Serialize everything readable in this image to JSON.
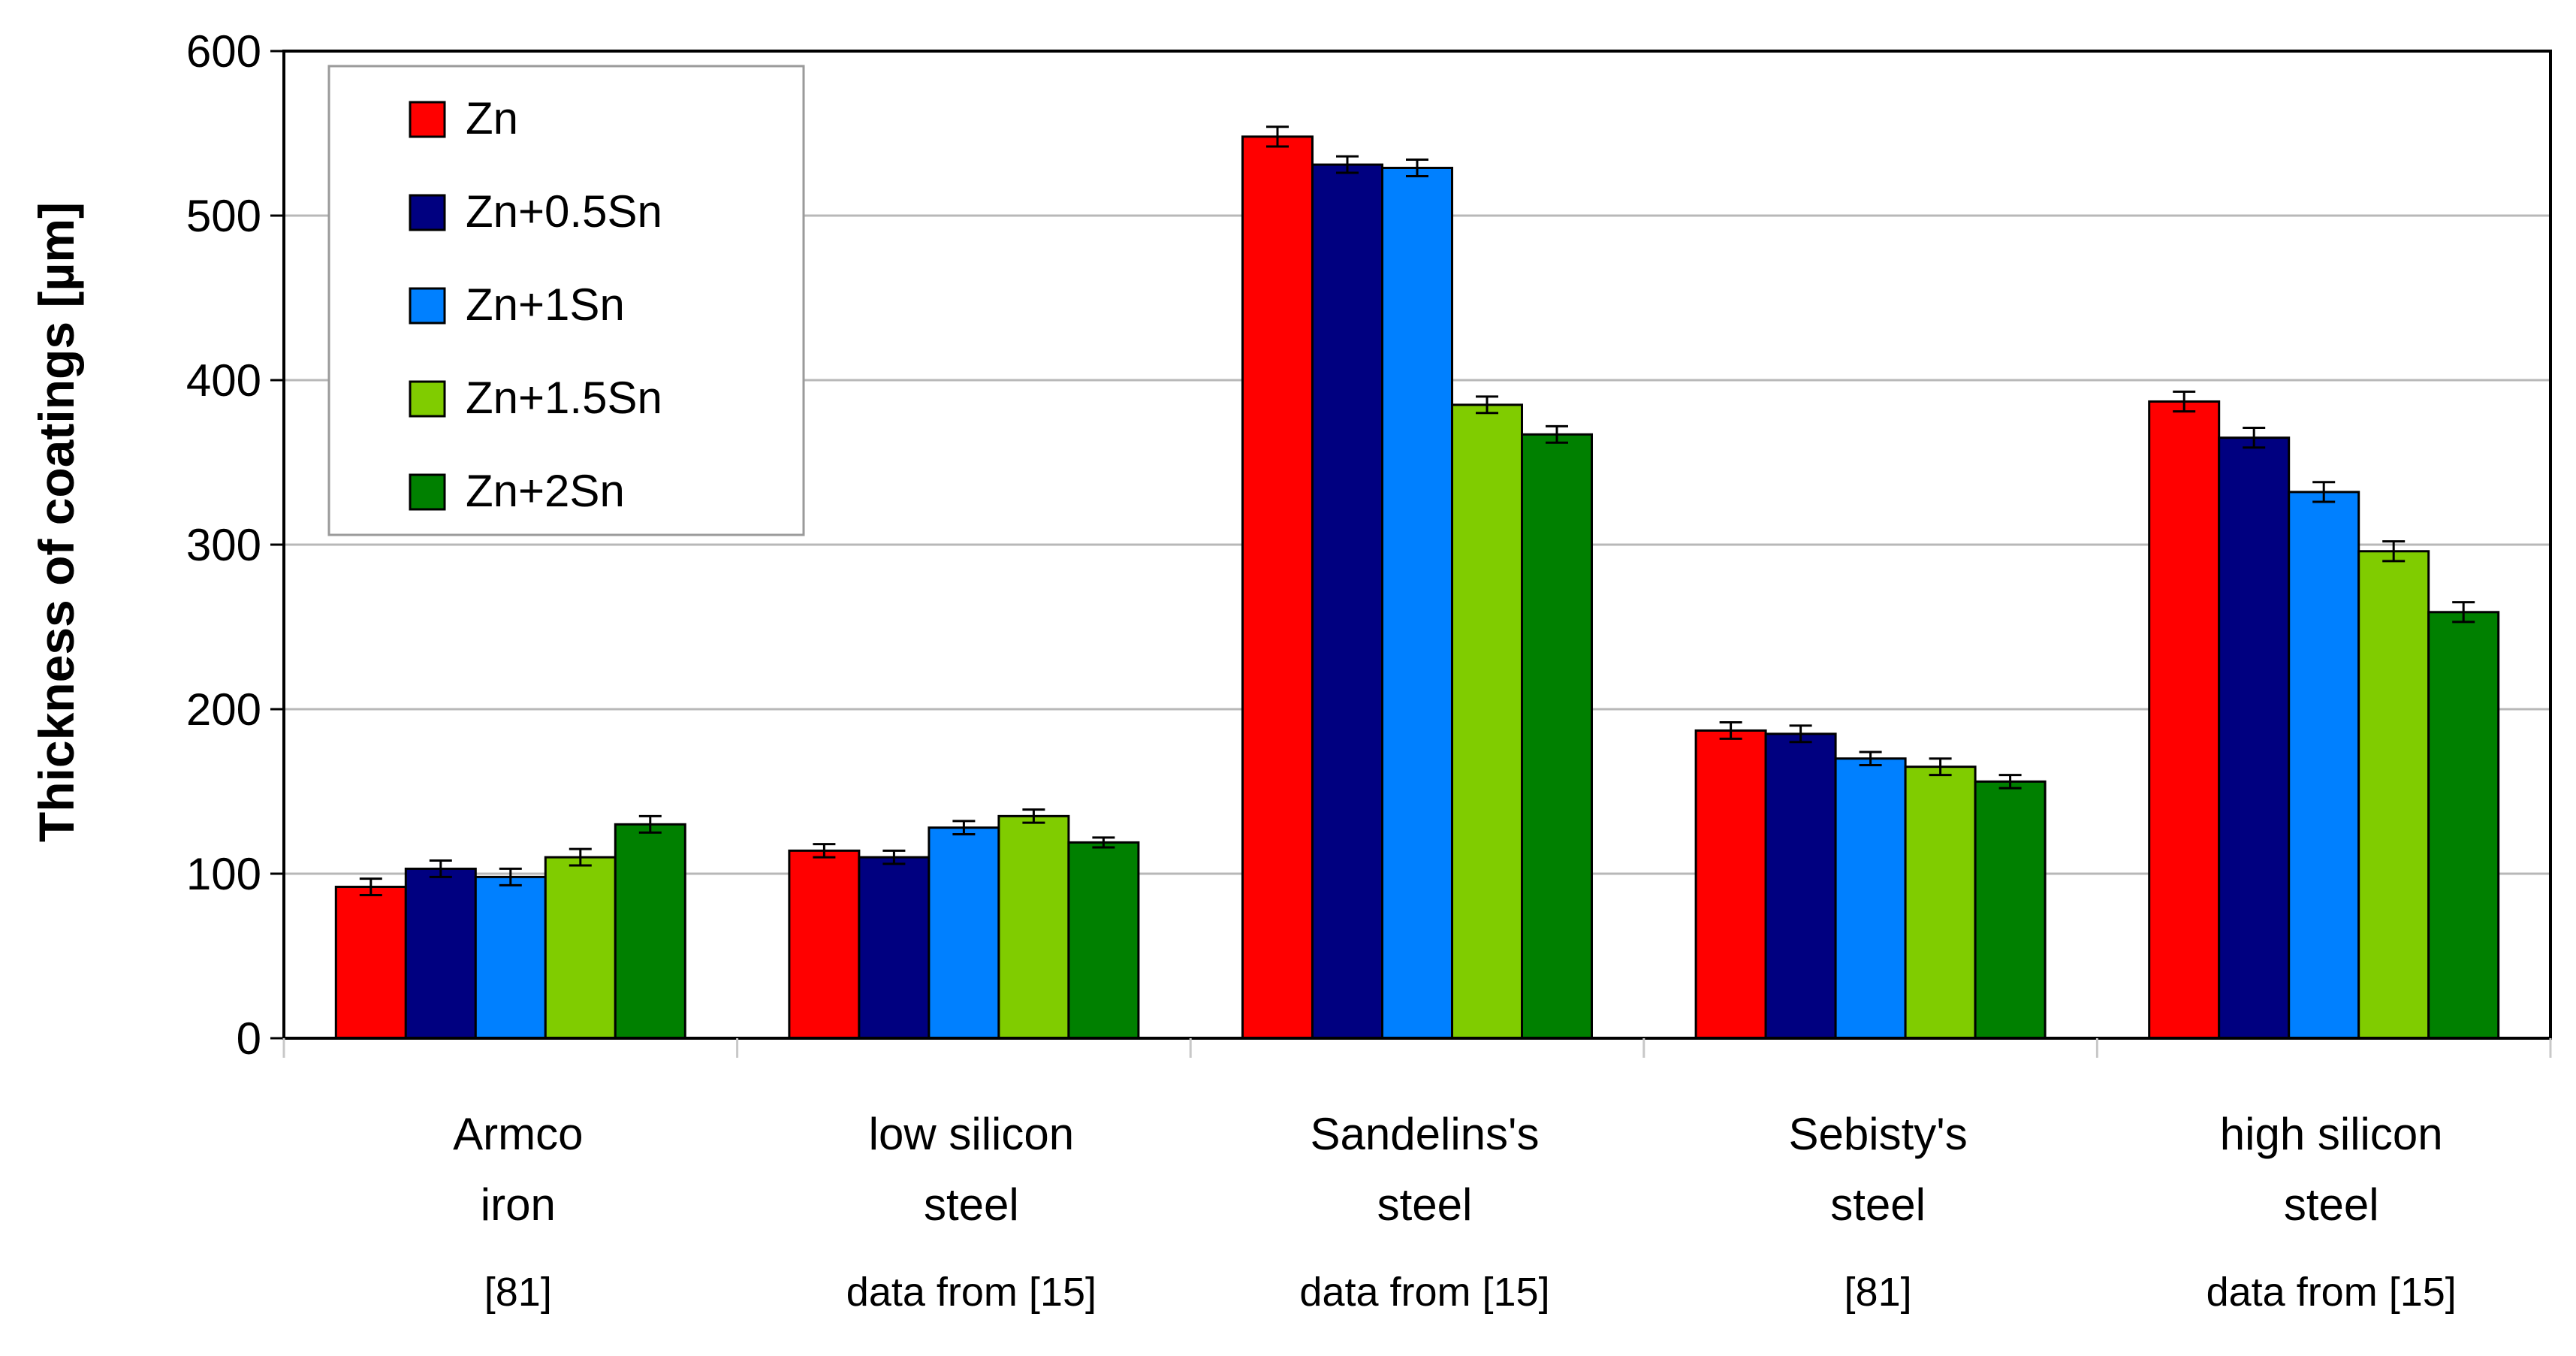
{
  "chart_data": {
    "type": "bar",
    "title": "",
    "xlabel": "",
    "ylabel": "Thickness of coatings [µm]",
    "ylim": [
      0,
      600
    ],
    "yticks": [
      0,
      100,
      200,
      300,
      400,
      500,
      600
    ],
    "ytick_labels": [
      "0",
      "100",
      "200",
      "300",
      "400",
      "500",
      "600"
    ],
    "grid": true,
    "legend_position": "top-left",
    "categories": [
      {
        "name": "Armco iron",
        "lines": [
          "Armco",
          "iron"
        ],
        "source": "[81]"
      },
      {
        "name": "low silicon steel",
        "lines": [
          "low silicon",
          "steel"
        ],
        "source": "data from [15]"
      },
      {
        "name": "Sandelins's steel",
        "lines": [
          "Sandelins's",
          "steel"
        ],
        "source": "data from [15]"
      },
      {
        "name": "Sebisty's steel",
        "lines": [
          "Sebisty's",
          "steel"
        ],
        "source": "[81]"
      },
      {
        "name": "high silicon steel",
        "lines": [
          "high silicon",
          "steel"
        ],
        "source": "data from [15]"
      }
    ],
    "series": [
      {
        "name": "Zn",
        "color": "#FF0000",
        "values": [
          92,
          114,
          548,
          187,
          387
        ],
        "errors": [
          5,
          4,
          6,
          5,
          6
        ]
      },
      {
        "name": "Zn+0.5Sn",
        "color": "#000080",
        "values": [
          103,
          110,
          531,
          185,
          365
        ],
        "errors": [
          5,
          4,
          5,
          5,
          6
        ]
      },
      {
        "name": "Zn+1Sn",
        "color": "#0080FF",
        "values": [
          98,
          128,
          529,
          170,
          332
        ],
        "errors": [
          5,
          4,
          5,
          4,
          6
        ]
      },
      {
        "name": "Zn+1.5Sn",
        "color": "#80CC00",
        "values": [
          110,
          135,
          385,
          165,
          296
        ],
        "errors": [
          5,
          4,
          5,
          5,
          6
        ]
      },
      {
        "name": "Zn+2Sn",
        "color": "#008000",
        "values": [
          130,
          119,
          367,
          156,
          259
        ],
        "errors": [
          5,
          3,
          5,
          4,
          6
        ]
      }
    ]
  }
}
